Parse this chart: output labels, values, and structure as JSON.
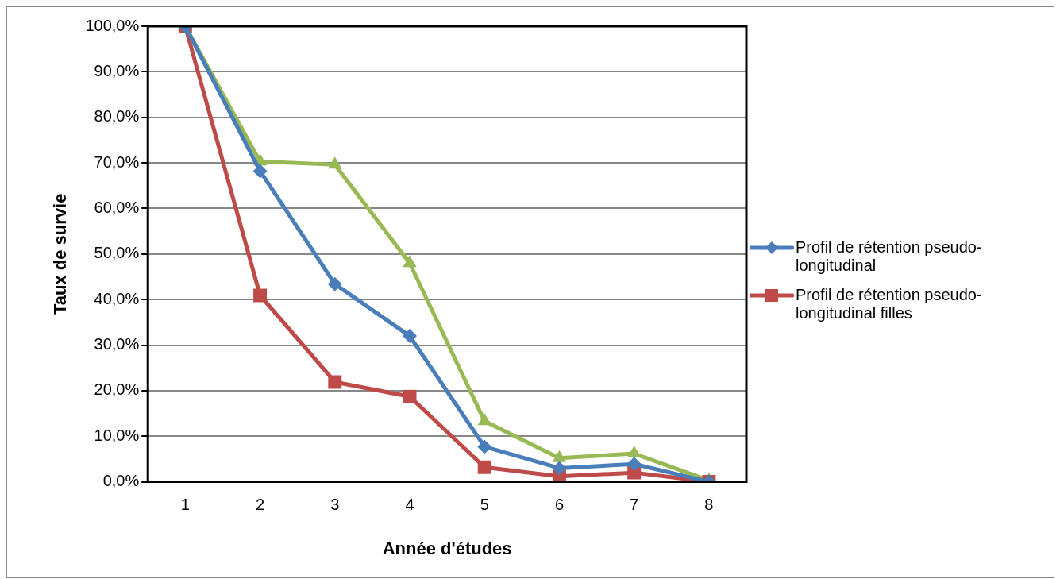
{
  "chart_data": {
    "type": "line",
    "xlabel": "Année d'études",
    "ylabel": "Taux de survie",
    "categories": [
      "1",
      "2",
      "3",
      "4",
      "5",
      "6",
      "7",
      "8"
    ],
    "series": [
      {
        "name": "Profil de rétention pseudo-longitudinal",
        "color": "#4a7ebb",
        "marker": "diamond",
        "values": [
          100,
          68.2,
          43.4,
          32.0,
          7.7,
          3.0,
          3.9,
          0
        ]
      },
      {
        "name": "Profil de rétention pseudo-longitudinal filles",
        "color": "#be4b48",
        "marker": "square",
        "values": [
          100,
          40.9,
          21.9,
          18.7,
          3.2,
          1.2,
          2.0,
          0
        ]
      },
      {
        "color": "#98b954",
        "marker": "triangle",
        "values": [
          100,
          70.3,
          69.6,
          48.0,
          13.3,
          5.2,
          6.2,
          0.3
        ]
      }
    ],
    "ylim": [
      0,
      100
    ],
    "yticks": [
      {
        "value": 0,
        "label": "0,0%"
      },
      {
        "value": 10,
        "label": "10,0%"
      },
      {
        "value": 20,
        "label": "20,0%"
      },
      {
        "value": 30,
        "label": "30,0%"
      },
      {
        "value": 40,
        "label": "40,0%"
      },
      {
        "value": 50,
        "label": "50,0%"
      },
      {
        "value": 60,
        "label": "60,0%"
      },
      {
        "value": 70,
        "label": "70,0%"
      },
      {
        "value": 80,
        "label": "80,0%"
      },
      {
        "value": 90,
        "label": "90,0%"
      },
      {
        "value": 100,
        "label": "100,0%"
      }
    ],
    "grid": "y",
    "legend": "right",
    "line_style": "solid"
  }
}
